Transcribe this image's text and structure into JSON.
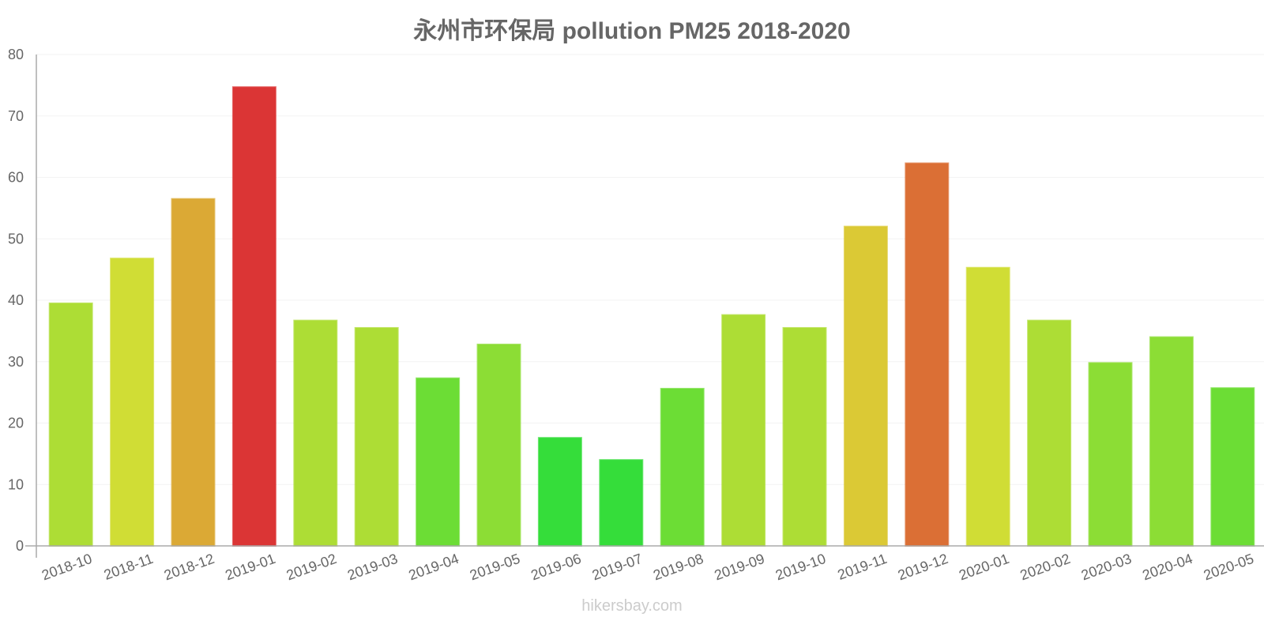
{
  "title": "永州市环保局 pollution PM25 2018-2020",
  "watermark": "hikersbay.com",
  "chart_data": {
    "type": "bar",
    "title": "永州市环保局 pollution PM25 2018-2020",
    "xlabel": "",
    "ylabel": "",
    "ylim": [
      0,
      80
    ],
    "yticks": [
      0,
      10,
      20,
      30,
      40,
      50,
      60,
      70,
      80
    ],
    "grid": true,
    "legend": null,
    "categories": [
      "2018-10",
      "2018-11",
      "2018-12",
      "2019-01",
      "2019-02",
      "2019-03",
      "2019-04",
      "2019-05",
      "2019-06",
      "2019-07",
      "2019-08",
      "2019-09",
      "2019-10",
      "2019-11",
      "2019-12",
      "2020-01",
      "2020-02",
      "2020-03",
      "2020-04",
      "2020-05"
    ],
    "values": [
      39.5,
      46.8,
      56.5,
      74.7,
      36.7,
      35.5,
      27.3,
      32.8,
      17.6,
      14.0,
      25.6,
      37.6,
      35.5,
      52.0,
      62.3,
      45.3,
      36.7,
      29.8,
      34.0,
      25.7
    ],
    "colors": [
      "#addd35",
      "#d0dd35",
      "#dba935",
      "#db3535",
      "#addd35",
      "#addd35",
      "#6cdd35",
      "#8cdd35",
      "#35dd3a",
      "#35dd3a",
      "#6cdd35",
      "#addd35",
      "#addd35",
      "#dbc935",
      "#db6f35",
      "#d0dd35",
      "#addd35",
      "#8cdd35",
      "#8cdd35",
      "#6cdd35"
    ]
  }
}
